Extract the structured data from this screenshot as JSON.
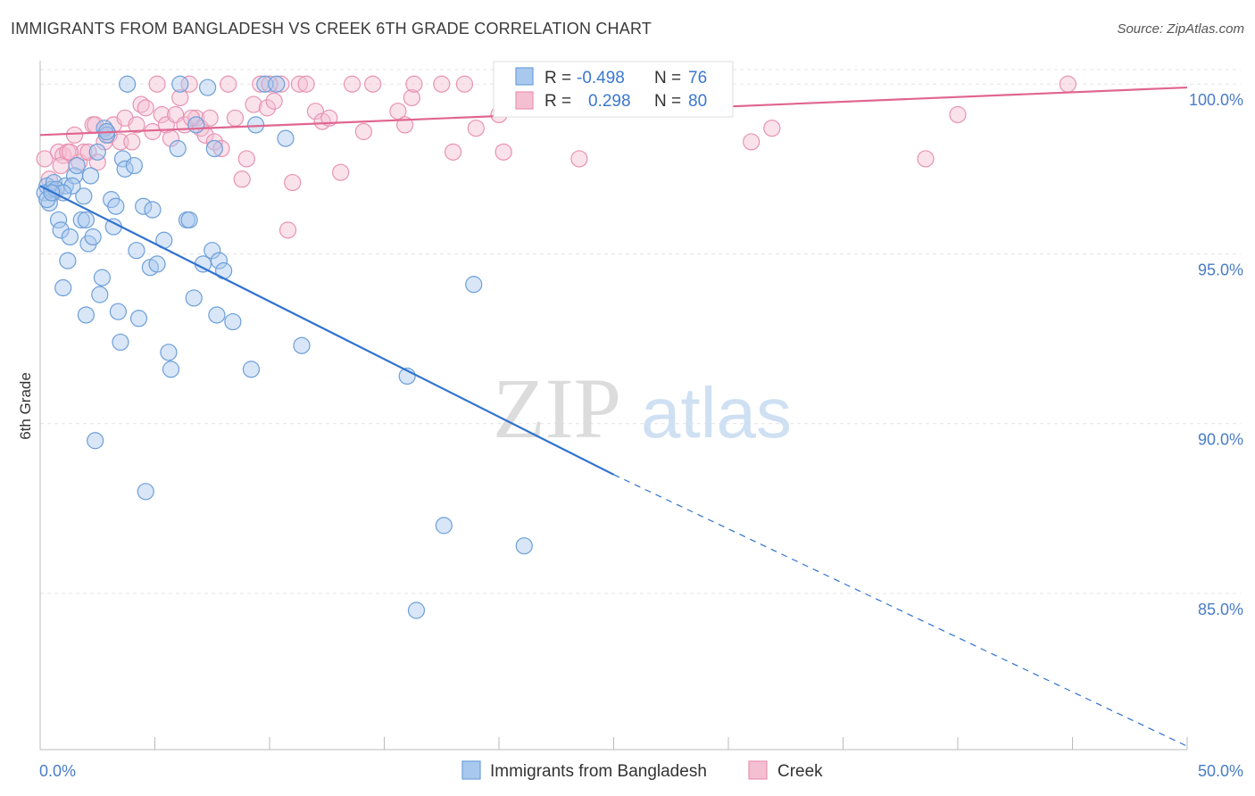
{
  "title": "IMMIGRANTS FROM BANGLADESH VS CREEK 6TH GRADE CORRELATION CHART",
  "source": "Source: ZipAtlas.com",
  "watermark": {
    "zip": "ZIP",
    "atlas": "atlas"
  },
  "colors": {
    "blue_fill": "#a9c8ee",
    "blue_stroke": "#6d9fd9",
    "blue_line": "#2f72d0",
    "pink_fill": "#f5bfd2",
    "pink_stroke": "#e893b2",
    "pink_line": "#e0668f",
    "tick_text": "#4a7cc7"
  },
  "legend": {
    "rows": [
      {
        "r_label": "R =",
        "r_value": "-0.498",
        "n_label": "N =",
        "n_value": "76"
      },
      {
        "r_label": "R =",
        "r_value": "0.298",
        "n_label": "N =",
        "n_value": "80"
      }
    ]
  },
  "chart_data": {
    "type": "scatter",
    "title": "IMMIGRANTS FROM BANGLADESH VS CREEK 6TH GRADE CORRELATION CHART",
    "xlabel": "",
    "ylabel": "6th Grade",
    "xlim": [
      0,
      50
    ],
    "ylim": [
      80.4,
      100.9
    ],
    "x_tick_labels": [
      "0.0%",
      "50.0%"
    ],
    "y_ticks": [
      100,
      95,
      90,
      85
    ],
    "y_tick_labels": [
      "100.0%",
      "95.0%",
      "90.0%",
      "85.0%"
    ],
    "grid": true,
    "legend_position": "top-center",
    "series": [
      {
        "name": "Immigrants from Bangladesh",
        "color": "blue",
        "trend": {
          "x0": 0,
          "y0": 97.0,
          "x1": 25,
          "y1": 88.5,
          "dash_to_x": 50,
          "dash_to_y": 80.5
        },
        "points": [
          [
            0.2,
            96.8
          ],
          [
            0.3,
            97.0
          ],
          [
            0.4,
            96.5
          ],
          [
            0.5,
            96.9
          ],
          [
            0.6,
            97.1
          ],
          [
            0.8,
            96.0
          ],
          [
            0.9,
            95.7
          ],
          [
            1.0,
            94.0
          ],
          [
            1.1,
            97.0
          ],
          [
            1.2,
            94.8
          ],
          [
            1.3,
            95.5
          ],
          [
            1.5,
            97.3
          ],
          [
            1.6,
            97.6
          ],
          [
            1.8,
            96.0
          ],
          [
            1.9,
            96.7
          ],
          [
            2.0,
            93.2
          ],
          [
            2.1,
            95.3
          ],
          [
            2.2,
            97.3
          ],
          [
            2.3,
            95.5
          ],
          [
            2.4,
            89.5
          ],
          [
            2.5,
            98.0
          ],
          [
            2.6,
            93.8
          ],
          [
            2.7,
            94.3
          ],
          [
            2.8,
            98.7
          ],
          [
            2.9,
            98.5
          ],
          [
            3.1,
            96.6
          ],
          [
            3.2,
            95.8
          ],
          [
            3.3,
            96.4
          ],
          [
            3.4,
            93.3
          ],
          [
            3.5,
            92.4
          ],
          [
            3.6,
            97.8
          ],
          [
            3.7,
            97.5
          ],
          [
            3.8,
            100.0
          ],
          [
            4.1,
            97.6
          ],
          [
            4.2,
            95.1
          ],
          [
            4.3,
            93.1
          ],
          [
            4.5,
            96.4
          ],
          [
            4.6,
            88.0
          ],
          [
            4.8,
            94.6
          ],
          [
            4.9,
            96.3
          ],
          [
            5.1,
            94.7
          ],
          [
            5.4,
            95.4
          ],
          [
            5.6,
            92.1
          ],
          [
            5.7,
            91.6
          ],
          [
            6.0,
            98.1
          ],
          [
            6.1,
            100.0
          ],
          [
            6.4,
            96.0
          ],
          [
            6.5,
            96.0
          ],
          [
            6.7,
            93.7
          ],
          [
            6.8,
            98.8
          ],
          [
            7.1,
            94.7
          ],
          [
            7.3,
            99.9
          ],
          [
            7.5,
            95.1
          ],
          [
            7.6,
            98.1
          ],
          [
            7.7,
            93.2
          ],
          [
            7.8,
            94.8
          ],
          [
            8.0,
            94.5
          ],
          [
            8.4,
            93.0
          ],
          [
            9.2,
            91.6
          ],
          [
            9.4,
            98.8
          ],
          [
            9.8,
            100.0
          ],
          [
            10.3,
            100.0
          ],
          [
            10.7,
            98.4
          ],
          [
            11.4,
            92.3
          ],
          [
            16.0,
            91.4
          ],
          [
            17.6,
            87.0
          ],
          [
            18.9,
            94.1
          ],
          [
            21.1,
            86.4
          ],
          [
            16.4,
            84.5
          ],
          [
            0.3,
            96.6
          ],
          [
            0.7,
            96.9
          ],
          [
            1.4,
            97.0
          ],
          [
            2.0,
            96.0
          ],
          [
            1.0,
            96.8
          ],
          [
            0.5,
            96.8
          ],
          [
            2.9,
            98.6
          ]
        ]
      },
      {
        "name": "Creek",
        "color": "pink",
        "trend": {
          "x0": 0,
          "y0": 98.5,
          "x1": 50,
          "y1": 99.9
        },
        "points": [
          [
            0.2,
            97.8
          ],
          [
            0.4,
            97.2
          ],
          [
            0.6,
            96.8
          ],
          [
            0.8,
            98.0
          ],
          [
            1.0,
            97.9
          ],
          [
            1.2,
            98.0
          ],
          [
            1.5,
            98.5
          ],
          [
            1.7,
            97.7
          ],
          [
            1.9,
            98.0
          ],
          [
            2.1,
            98.0
          ],
          [
            2.3,
            98.8
          ],
          [
            2.5,
            97.7
          ],
          [
            2.8,
            98.3
          ],
          [
            3.0,
            98.5
          ],
          [
            3.2,
            98.8
          ],
          [
            3.5,
            98.3
          ],
          [
            3.7,
            99.0
          ],
          [
            4.0,
            98.3
          ],
          [
            4.2,
            98.8
          ],
          [
            4.4,
            99.4
          ],
          [
            4.6,
            99.3
          ],
          [
            4.9,
            98.6
          ],
          [
            5.1,
            100.0
          ],
          [
            5.3,
            99.1
          ],
          [
            5.5,
            98.8
          ],
          [
            5.7,
            98.4
          ],
          [
            5.9,
            99.1
          ],
          [
            6.1,
            99.6
          ],
          [
            6.3,
            98.8
          ],
          [
            6.5,
            100.0
          ],
          [
            6.8,
            99.0
          ],
          [
            7.0,
            98.7
          ],
          [
            7.2,
            98.5
          ],
          [
            7.4,
            99.0
          ],
          [
            7.6,
            98.3
          ],
          [
            7.9,
            98.1
          ],
          [
            8.2,
            100.0
          ],
          [
            8.5,
            99.0
          ],
          [
            8.8,
            97.2
          ],
          [
            9.0,
            97.8
          ],
          [
            9.3,
            99.4
          ],
          [
            9.6,
            100.0
          ],
          [
            9.9,
            99.3
          ],
          [
            10.2,
            99.5
          ],
          [
            10.5,
            100.0
          ],
          [
            10.8,
            95.7
          ],
          [
            11.0,
            97.1
          ],
          [
            11.3,
            100.0
          ],
          [
            11.6,
            100.0
          ],
          [
            12.0,
            99.2
          ],
          [
            12.3,
            98.9
          ],
          [
            12.6,
            99.0
          ],
          [
            13.1,
            97.4
          ],
          [
            13.6,
            100.0
          ],
          [
            14.1,
            98.6
          ],
          [
            14.5,
            100.0
          ],
          [
            15.6,
            99.2
          ],
          [
            15.9,
            98.8
          ],
          [
            16.2,
            99.6
          ],
          [
            16.3,
            100.0
          ],
          [
            17.5,
            100.0
          ],
          [
            18.0,
            98.0
          ],
          [
            18.5,
            100.0
          ],
          [
            19.0,
            98.7
          ],
          [
            20.0,
            99.1
          ],
          [
            20.2,
            98.0
          ],
          [
            21.4,
            99.3
          ],
          [
            22.3,
            99.5
          ],
          [
            23.2,
            99.5
          ],
          [
            23.5,
            97.8
          ],
          [
            31.0,
            98.3
          ],
          [
            31.9,
            98.7
          ],
          [
            38.6,
            97.8
          ],
          [
            40.0,
            99.1
          ],
          [
            44.8,
            100.0
          ],
          [
            2.4,
            98.8
          ],
          [
            0.9,
            97.6
          ],
          [
            1.3,
            98.0
          ],
          [
            10.0,
            100.0
          ],
          [
            6.6,
            99.0
          ]
        ]
      }
    ]
  }
}
